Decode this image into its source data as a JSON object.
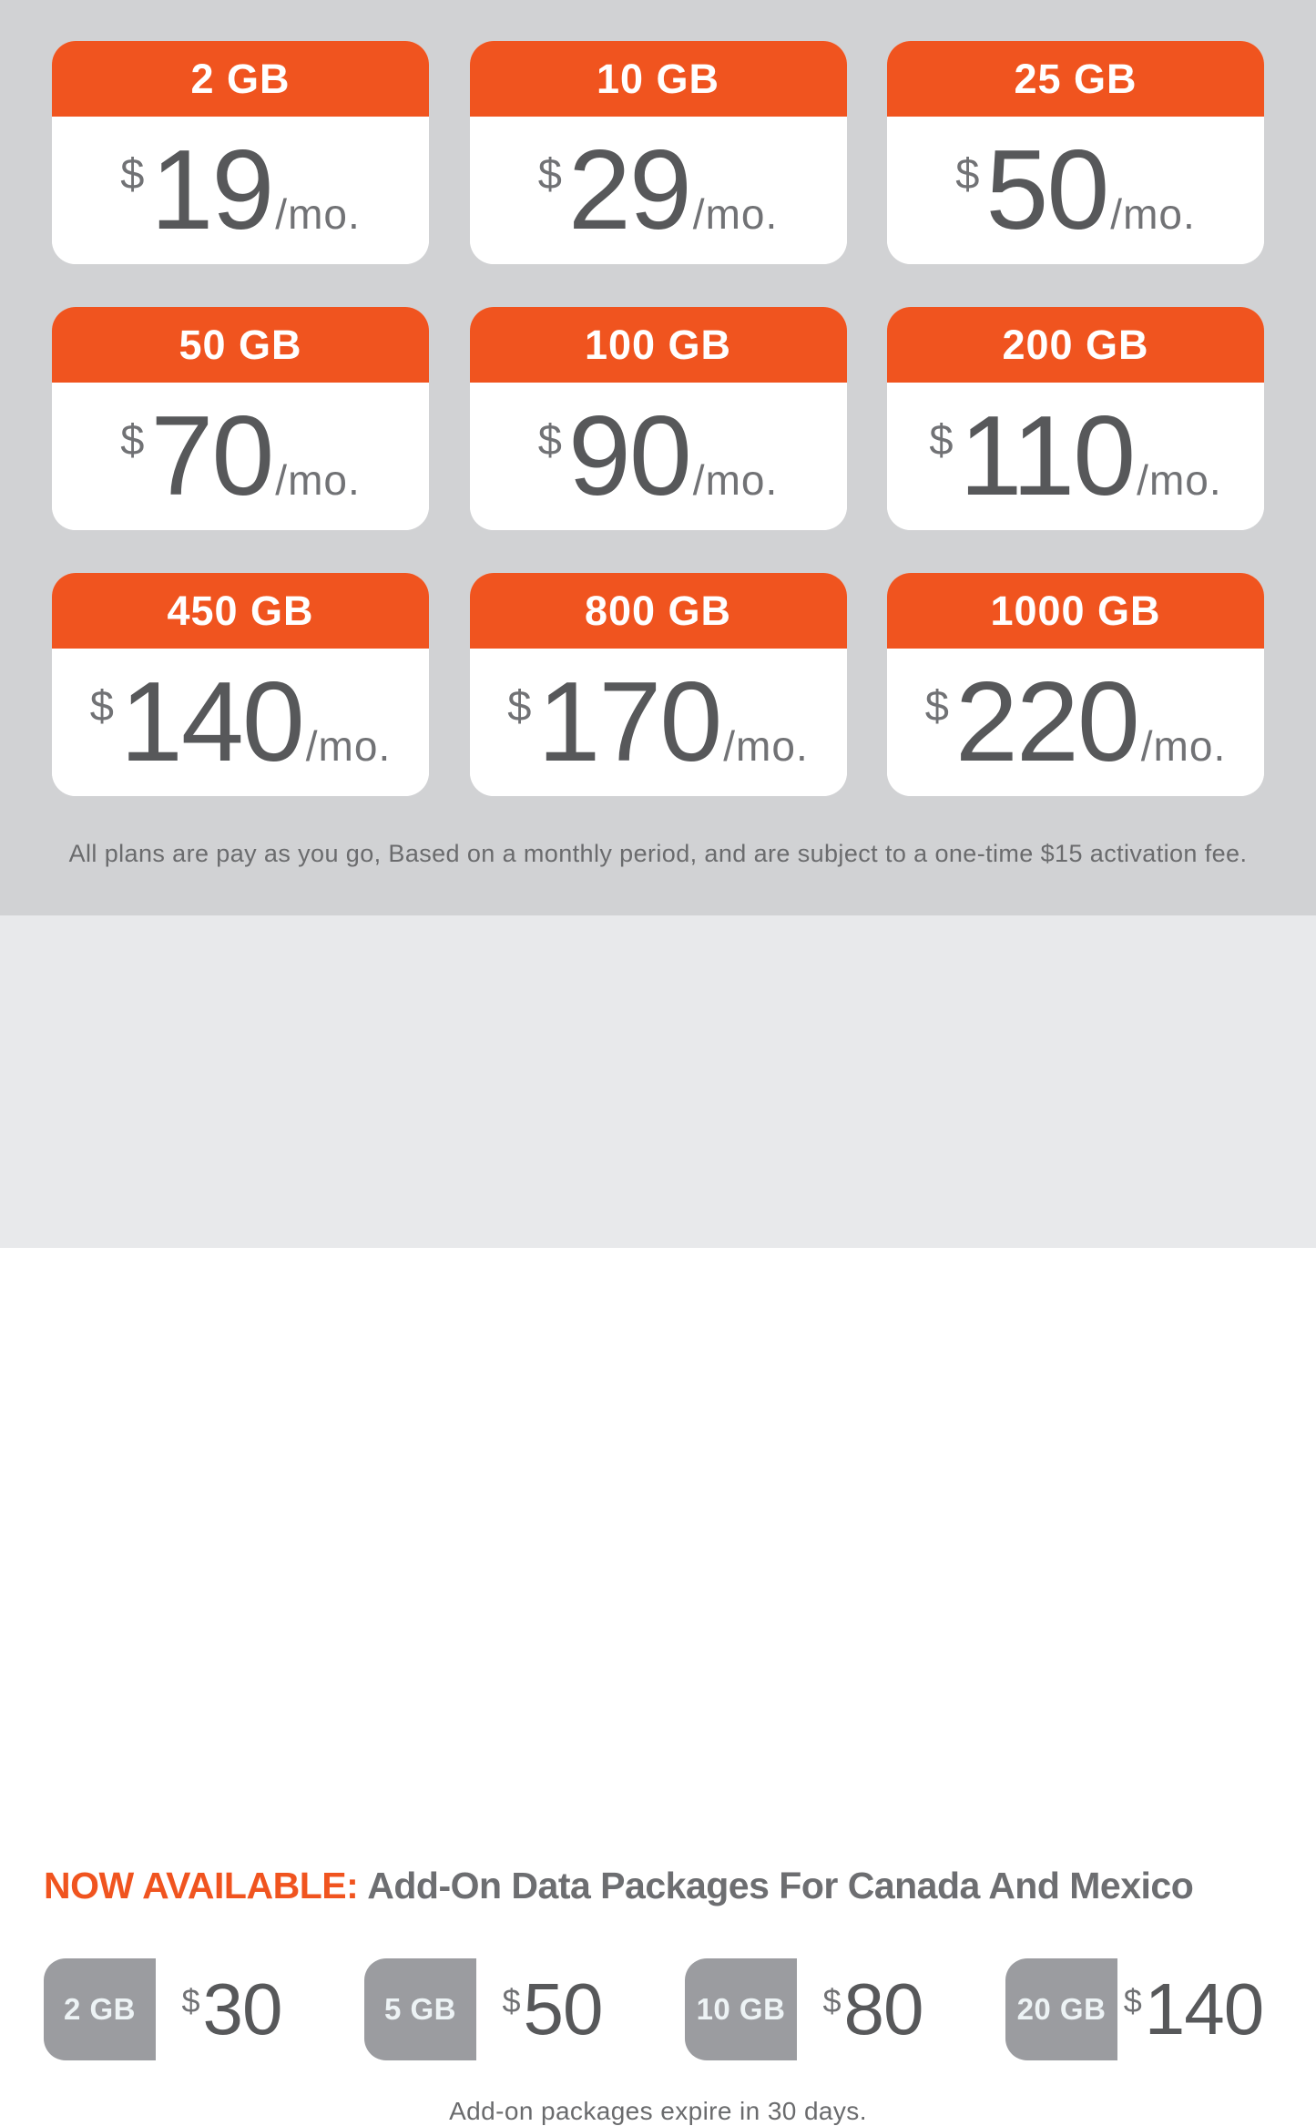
{
  "colors": {
    "orange": "#F0541F",
    "top_bg": "#D1D2D4",
    "bottom_bg": "#E8E9EB",
    "card_bg": "#FFFFFF",
    "price_dark": "#57585A",
    "price_gray": "#717275",
    "addon_label_bg": "#9B9CA0",
    "addon_label_text": "#EDF3F5",
    "heading_gray": "#6D6E71"
  },
  "plans": [
    {
      "data": "2 GB",
      "currency": "$",
      "price": "19",
      "period": "/mo."
    },
    {
      "data": "10 GB",
      "currency": "$",
      "price": "29",
      "period": "/mo."
    },
    {
      "data": "25 GB",
      "currency": "$",
      "price": "50",
      "period": "/mo."
    },
    {
      "data": "50 GB",
      "currency": "$",
      "price": "70",
      "period": "/mo."
    },
    {
      "data": "100 GB",
      "currency": "$",
      "price": "90",
      "period": "/mo."
    },
    {
      "data": "200 GB",
      "currency": "$",
      "price": "110",
      "period": "/mo."
    },
    {
      "data": "450 GB",
      "currency": "$",
      "price": "140",
      "period": "/mo."
    },
    {
      "data": "800 GB",
      "currency": "$",
      "price": "170",
      "period": "/mo."
    },
    {
      "data": "1000 GB",
      "currency": "$",
      "price": "220",
      "period": "/mo."
    }
  ],
  "plans_note": "All plans are pay as you go, Based on a monthly period, and are subject to a one-time $15 activation fee.",
  "addons_section": {
    "heading_highlight": "NOW AVAILABLE:",
    "heading_rest": "Add-On Data Packages For Canada And Mexico",
    "packages": [
      {
        "data": "2 GB",
        "currency": "$",
        "price": "30"
      },
      {
        "data": "5 GB",
        "currency": "$",
        "price": "50"
      },
      {
        "data": "10 GB",
        "currency": "$",
        "price": "80"
      },
      {
        "data": "20 GB",
        "currency": "$",
        "price": "140"
      }
    ],
    "note": "Add-on packages expire in 30 days."
  }
}
